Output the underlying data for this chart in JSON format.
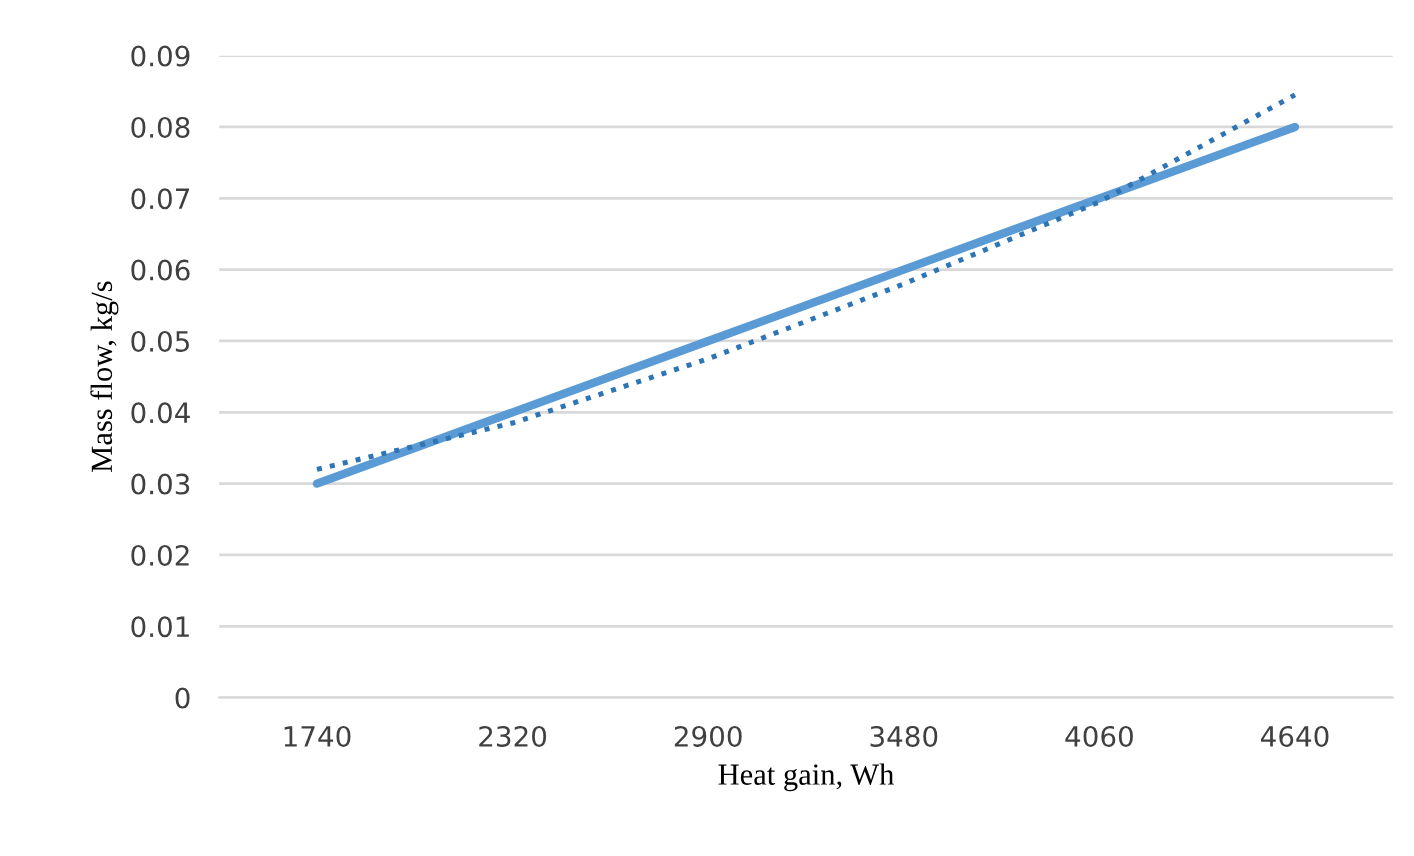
{
  "chart_data": {
    "type": "line",
    "xlabel": "Heat gain, Wh",
    "ylabel": "Mass flow, kg/s",
    "categories": [
      "1740",
      "2320",
      "2900",
      "3480",
      "4060",
      "4640"
    ],
    "series": [
      {
        "color": "#5b9bd5",
        "values": [
          0.03,
          0.04,
          0.05,
          0.06,
          0.07,
          0.08
        ],
        "line_style": "solid"
      },
      {
        "color": "#2e75b6",
        "values": [
          0.032,
          0.0385,
          0.0475,
          0.058,
          0.0695,
          0.0845
        ],
        "line_style": "dotted"
      }
    ],
    "ylim": [
      0,
      0.09
    ],
    "yticks": [
      {
        "value": 0,
        "label": "0"
      },
      0.01,
      0.02,
      0.03,
      0.04,
      0.05,
      0.06,
      0.07,
      0.08,
      0.09
    ],
    "grid": "y",
    "legend": false
  }
}
